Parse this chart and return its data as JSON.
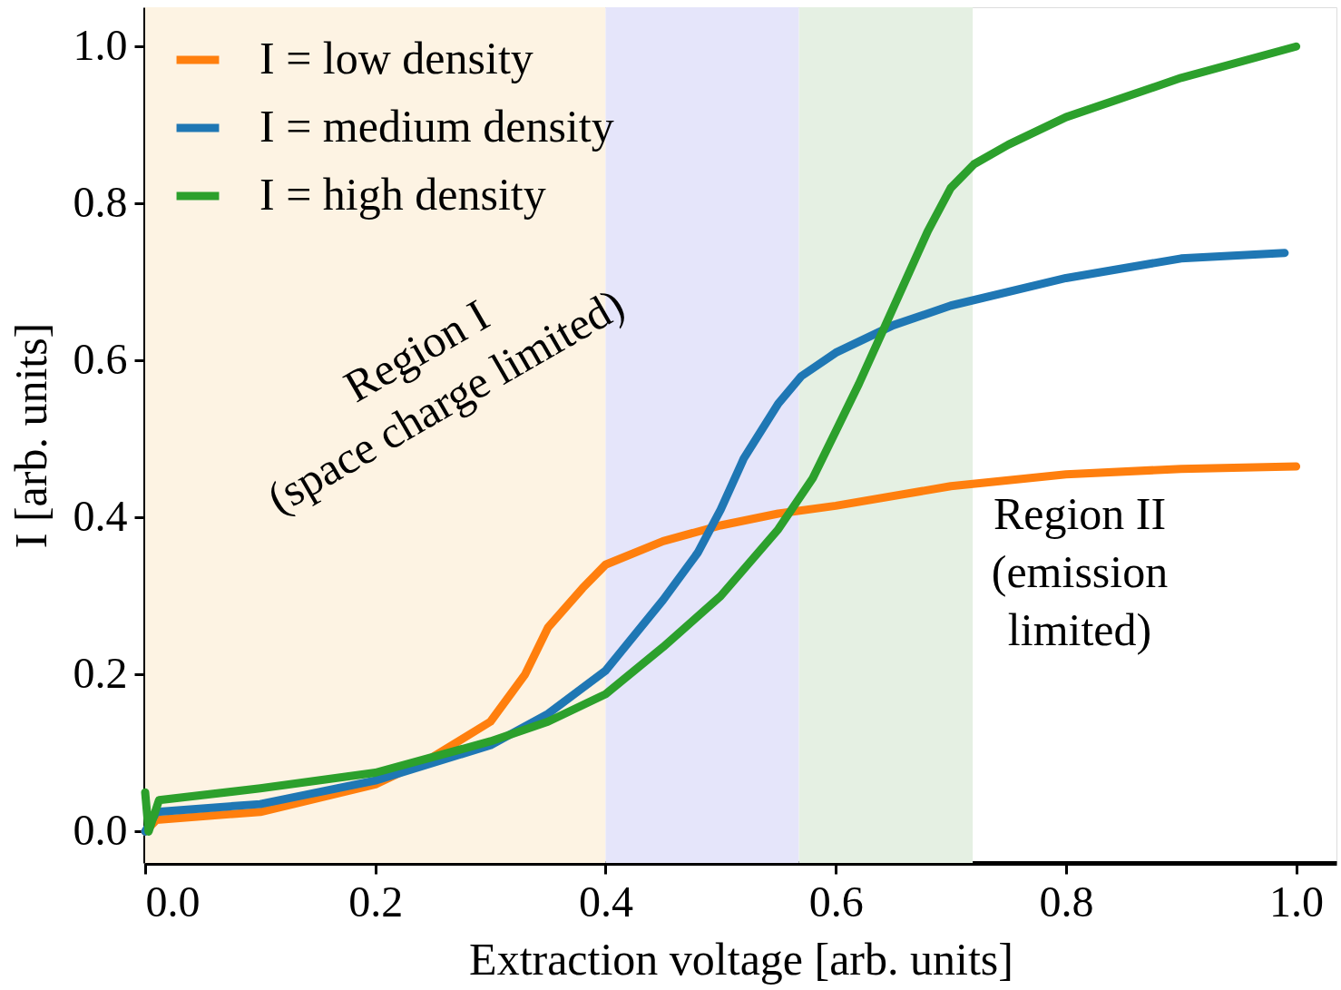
{
  "chart_data": {
    "type": "line",
    "xlabel": "Extraction voltage [arb. units]",
    "ylabel": "I [arb. units]",
    "xlim": [
      0,
      1.035
    ],
    "ylim": [
      -0.04,
      1.05
    ],
    "xticks": [
      {
        "value": 0,
        "label": "0.0"
      },
      0.2,
      0.4,
      0.6,
      0.8,
      {
        "value": 1,
        "label": "1.0"
      }
    ],
    "yticks": [
      {
        "value": 0,
        "label": "0.0"
      },
      0.2,
      0.4,
      0.6,
      0.8,
      {
        "value": 1,
        "label": "1.0"
      }
    ],
    "grid": false,
    "legend": "top left",
    "line_style": "solid",
    "marker": "none",
    "series": [
      {
        "name": "I = low density",
        "color": "#ff7f0e",
        "x": [
          0,
          0.01,
          0.1,
          0.2,
          0.25,
          0.3,
          0.33,
          0.35,
          0.38,
          0.4,
          0.45,
          0.5,
          0.55,
          0.6,
          0.7,
          0.8,
          0.9,
          1.0
        ],
        "values": [
          0,
          0.015,
          0.025,
          0.06,
          0.095,
          0.14,
          0.2,
          0.26,
          0.31,
          0.34,
          0.37,
          0.39,
          0.405,
          0.415,
          0.44,
          0.455,
          0.462,
          0.465
        ]
      },
      {
        "name": "I = medium density",
        "color": "#1f77b4",
        "x": [
          0,
          0.01,
          0.1,
          0.2,
          0.3,
          0.35,
          0.4,
          0.45,
          0.48,
          0.5,
          0.52,
          0.55,
          0.57,
          0.6,
          0.65,
          0.7,
          0.8,
          0.9,
          0.99
        ],
        "values": [
          0,
          0.025,
          0.035,
          0.065,
          0.11,
          0.15,
          0.205,
          0.295,
          0.355,
          0.41,
          0.475,
          0.545,
          0.58,
          0.61,
          0.645,
          0.67,
          0.705,
          0.73,
          0.737
        ]
      },
      {
        "name": "I = high density",
        "color": "#2ca02c",
        "x": [
          0,
          0.003,
          0.012,
          0.1,
          0.2,
          0.3,
          0.35,
          0.4,
          0.45,
          0.5,
          0.55,
          0.58,
          0.6,
          0.62,
          0.64,
          0.66,
          0.68,
          0.7,
          0.72,
          0.75,
          0.8,
          0.9,
          1.0
        ],
        "values": [
          0.05,
          0.0,
          0.04,
          0.055,
          0.075,
          0.115,
          0.14,
          0.175,
          0.235,
          0.3,
          0.385,
          0.45,
          0.51,
          0.57,
          0.635,
          0.7,
          0.765,
          0.82,
          0.85,
          0.875,
          0.91,
          0.96,
          1.0
        ]
      }
    ],
    "bands": [
      {
        "axis": "x",
        "from": 0.0,
        "to": 0.4,
        "color": "#fdf3e3"
      },
      {
        "axis": "x",
        "from": 0.4,
        "to": 0.568,
        "color": "#e5e5fa"
      },
      {
        "axis": "x",
        "from": 0.568,
        "to": 0.719,
        "color": "#e5f0e3"
      }
    ],
    "annotations": [
      "Region I\n(space charge limited)",
      "Region II\n(emission\nlimited)"
    ]
  }
}
